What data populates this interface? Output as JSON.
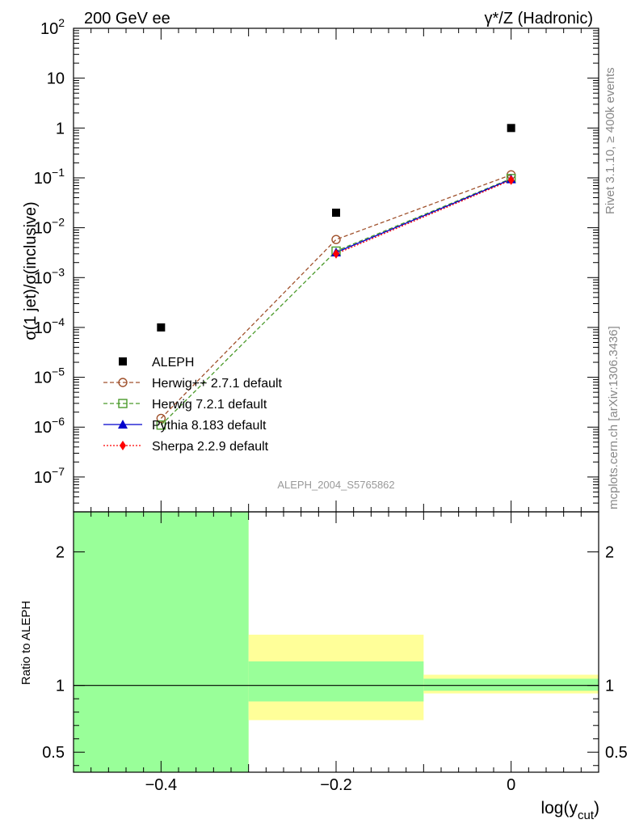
{
  "header": {
    "left": "200 GeV ee",
    "right": "γ*/Z (Hadronic)"
  },
  "side_labels": {
    "rivet": "Rivet 3.1.10, ≥ 400k events",
    "mcplots": "mcplots.cern.ch [arXiv:1306.3436]"
  },
  "watermark": "ALEPH_2004_S5765862",
  "colors": {
    "data": "#000000",
    "herwigpp": "#a0522d",
    "herwig7": "#4a9a2a",
    "pythia": "#0000cc",
    "sherpa": "#ff0000",
    "band_inner": "#99ff99",
    "band_outer": "#ffff99"
  },
  "chart_data": [
    {
      "type": "line",
      "title": "",
      "xlabel": "log(y_cut)",
      "ylabel": "σ(1 jet)/σ(inclusive)",
      "yscale": "log",
      "xlim": [
        -0.5,
        0.1
      ],
      "ylim": [
        2e-08,
        100
      ],
      "x_ticks": [
        -0.4,
        -0.2,
        0
      ],
      "x_tick_labels": [
        "−0.4",
        "−0.2",
        "0"
      ],
      "y_tick_labels": [
        {
          "base": "10",
          "exp": "2"
        },
        {
          "base": "10",
          "exp": ""
        },
        {
          "base": "1",
          "exp": ""
        },
        {
          "base": "10",
          "exp": "−1"
        },
        {
          "base": "10",
          "exp": "−2"
        },
        {
          "base": "10",
          "exp": "−3"
        },
        {
          "base": "10",
          "exp": "−4"
        },
        {
          "base": "10",
          "exp": "−5"
        },
        {
          "base": "10",
          "exp": "−6"
        },
        {
          "base": "10",
          "exp": "−7"
        }
      ],
      "y_tick_values": [
        100,
        10,
        1,
        0.1,
        0.01,
        0.001,
        0.0001,
        1e-05,
        1e-06,
        1e-07
      ],
      "legend": {
        "placement": "lower-left"
      },
      "series": [
        {
          "name": "ALEPH",
          "key": "data",
          "marker": "square",
          "x": [
            -0.4,
            -0.2,
            0
          ],
          "y": [
            0.0001,
            0.02,
            1.0
          ]
        },
        {
          "name": "Herwig++ 2.7.1 default",
          "key": "herwigpp",
          "marker": "open-circle",
          "dash": "dashed",
          "x": [
            -0.4,
            -0.2,
            0
          ],
          "y": [
            1.5e-06,
            0.0058,
            0.115
          ]
        },
        {
          "name": "Herwig 7.2.1 default",
          "key": "herwig7",
          "marker": "open-square",
          "dash": "dashed",
          "x": [
            -0.4,
            -0.2,
            0
          ],
          "y": [
            1.1e-06,
            0.0034,
            0.097
          ]
        },
        {
          "name": "Pythia 8.183 default",
          "key": "pythia",
          "marker": "triangle",
          "dash": "solid",
          "x": [
            -0.2,
            0
          ],
          "y": [
            0.0032,
            0.094
          ]
        },
        {
          "name": "Sherpa 2.2.9 default",
          "key": "sherpa",
          "marker": "diamond",
          "dash": "dotted",
          "x": [
            -0.2,
            0
          ],
          "y": [
            0.003,
            0.09
          ]
        }
      ]
    },
    {
      "type": "area",
      "ylabel": "Ratio to ALEPH",
      "ylim": [
        0.35,
        2.3
      ],
      "y_ticks": [
        0.5,
        1,
        2
      ],
      "y_tick_labels": [
        "0.5",
        "1",
        "2"
      ],
      "reference_line": 1,
      "bands": [
        {
          "x0": -0.5,
          "x1": -0.3,
          "inner": [
            0.35,
            2.3
          ],
          "outer": [
            0.35,
            2.3
          ]
        },
        {
          "x0": -0.3,
          "x1": -0.1,
          "inner": [
            0.88,
            1.18
          ],
          "outer": [
            0.74,
            1.38
          ]
        },
        {
          "x0": -0.1,
          "x1": 0.1,
          "inner": [
            0.96,
            1.05
          ],
          "outer": [
            0.94,
            1.08
          ]
        }
      ]
    }
  ]
}
